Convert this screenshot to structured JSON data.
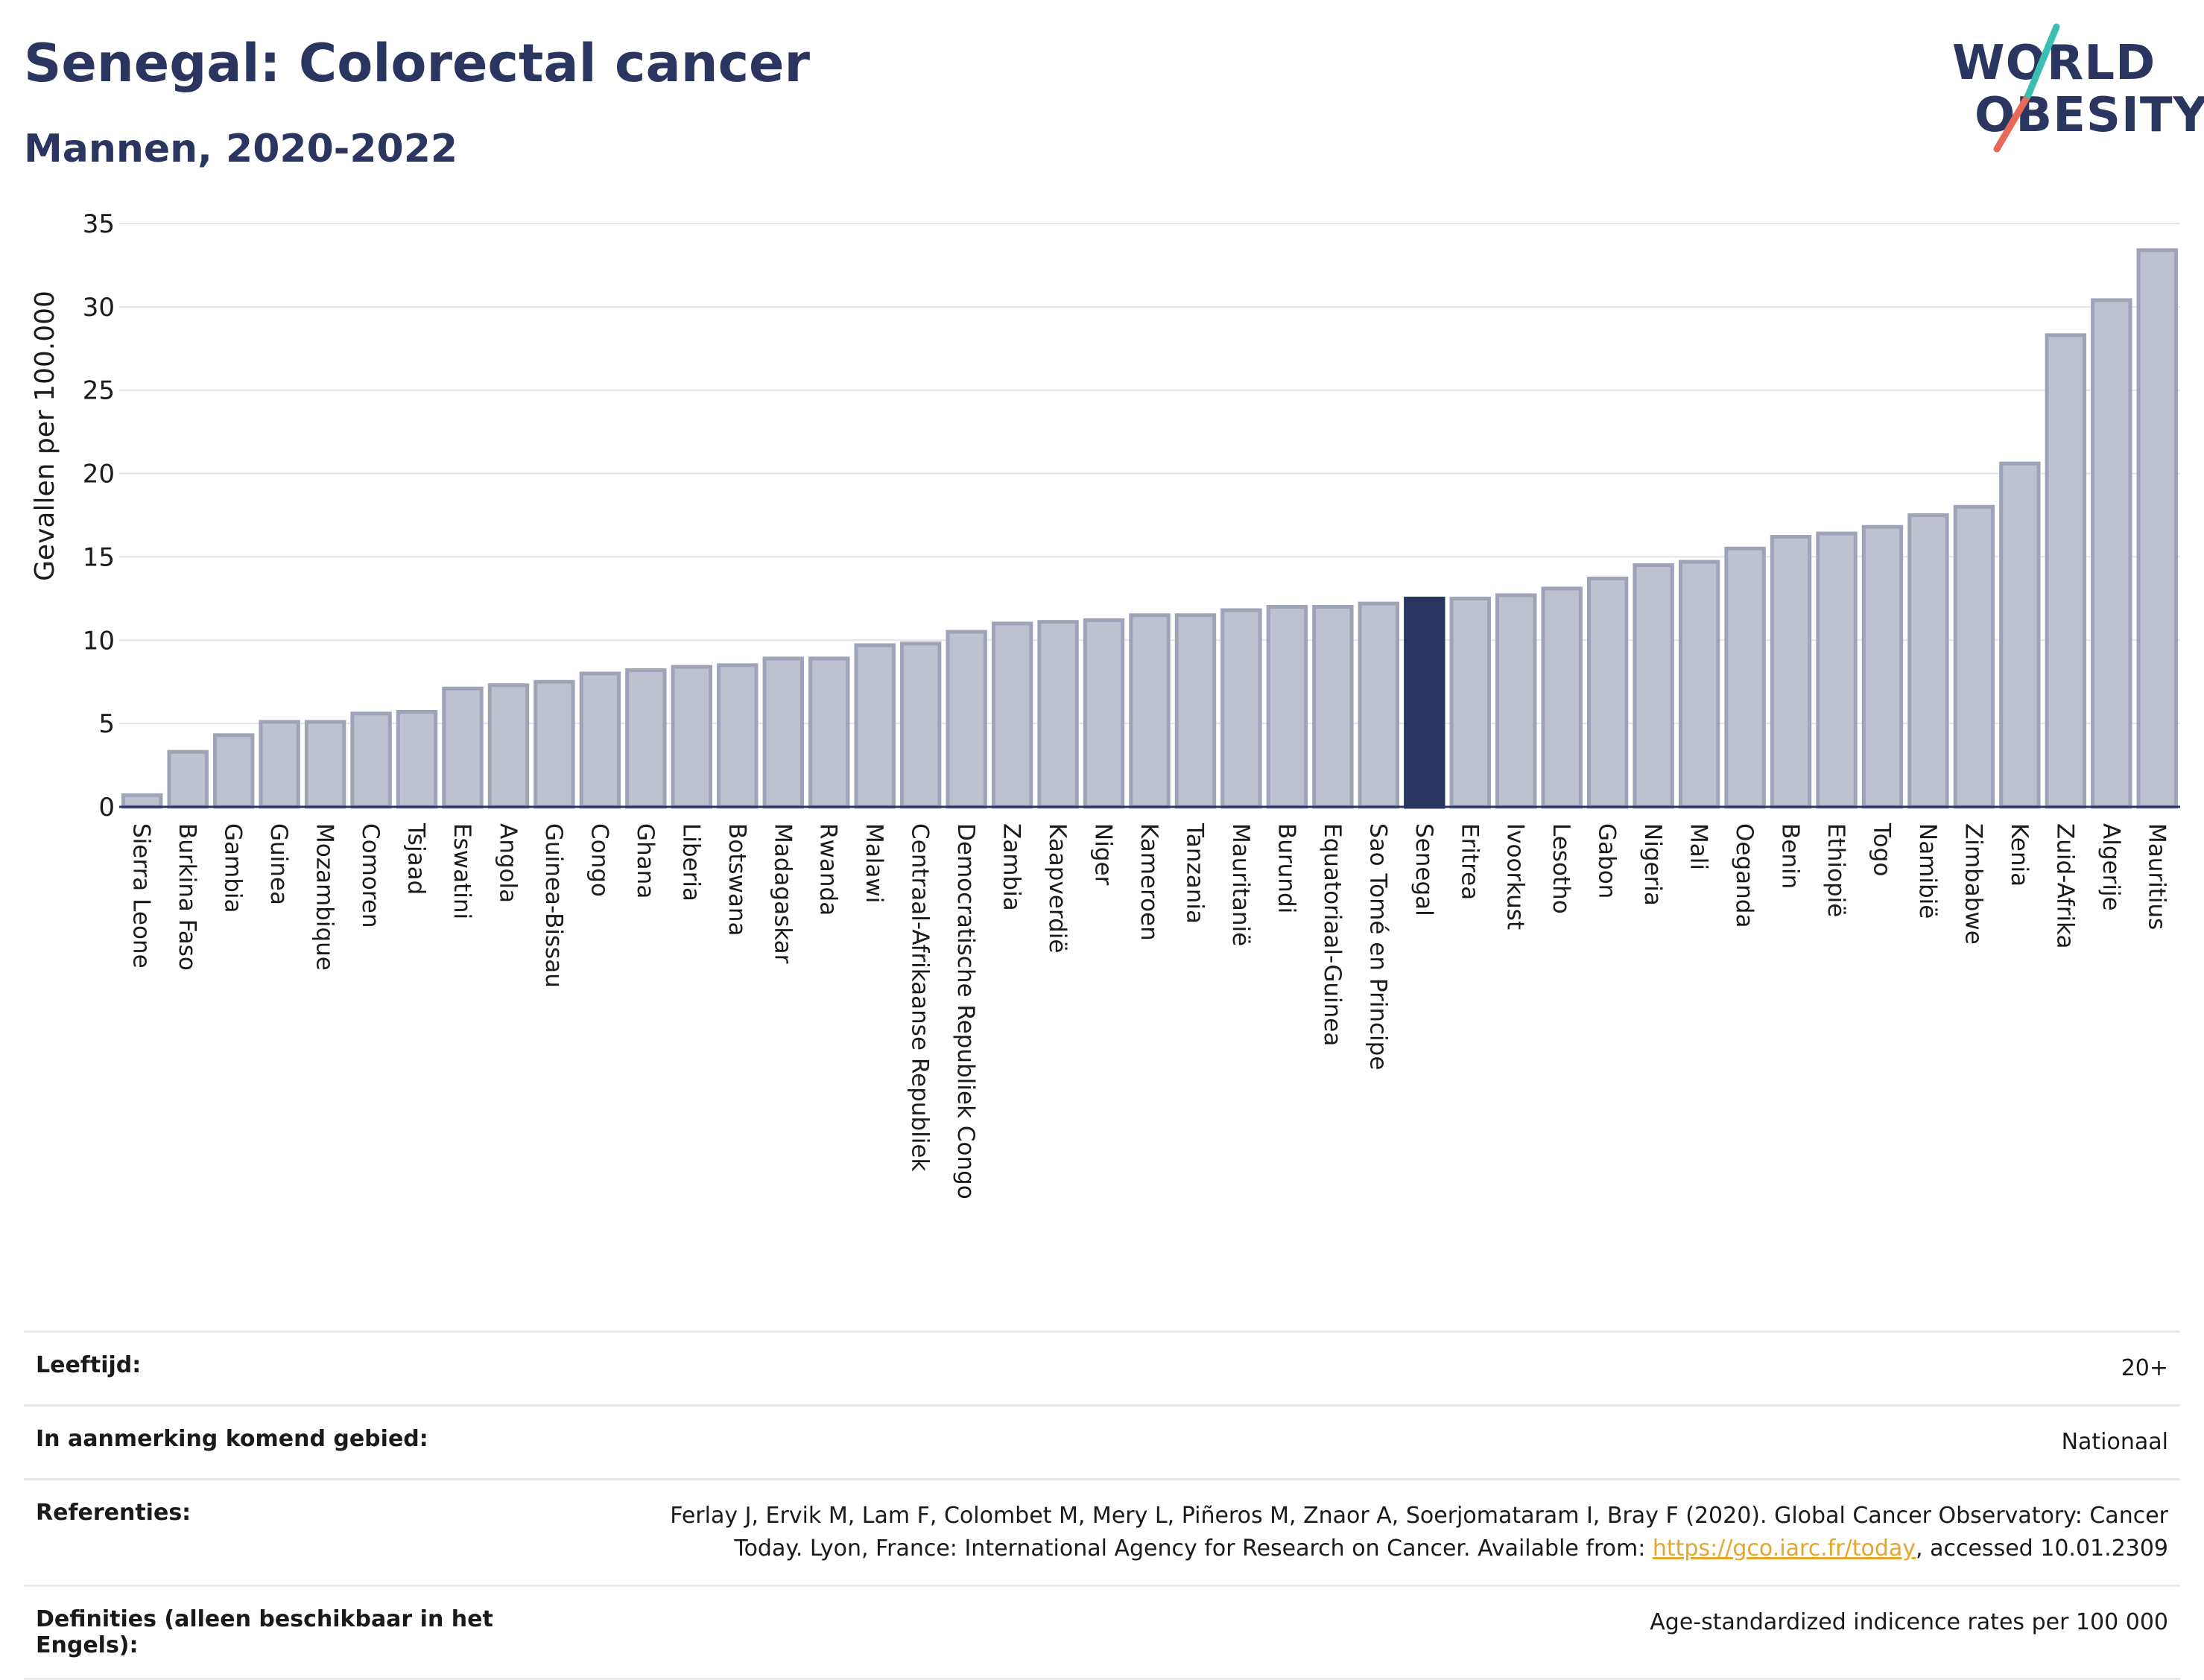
{
  "header": {
    "title": "Senegal: Colorectal cancer",
    "subtitle": "Mannen, 2020-2022"
  },
  "logo": {
    "line1": "WORLD",
    "line2": "OBESITY"
  },
  "chart_data": {
    "type": "bar",
    "ylabel": "Gevallen per 100.000",
    "ylim": [
      0,
      35
    ],
    "yticks": [
      0,
      5,
      10,
      15,
      20,
      25,
      30,
      35
    ],
    "grid": true,
    "highlight": "Senegal",
    "colors": {
      "bar": "#bec1d0",
      "bar_edge": "#9ea3b8",
      "highlight": "#2a3560",
      "grid": "#e3e5ec",
      "axis": "#2a3560"
    },
    "categories": [
      "Sierra Leone",
      "Burkina Faso",
      "Gambia",
      "Guinea",
      "Mozambique",
      "Comoren",
      "Tsjaad",
      "Eswatini",
      "Angola",
      "Guinea-Bissau",
      "Congo",
      "Ghana",
      "Liberia",
      "Botswana",
      "Madagaskar",
      "Rwanda",
      "Malawi",
      "Centraal-Afrikaanse Republiek",
      "Democratische Republiek Congo",
      "Zambia",
      "Kaapverdië",
      "Niger",
      "Kameroen",
      "Tanzania",
      "Mauritanië",
      "Burundi",
      "Equatoriaal-Guinea",
      "Sao Tomé en Principe",
      "Senegal",
      "Eritrea",
      "Ivoorkust",
      "Lesotho",
      "Gabon",
      "Nigeria",
      "Mali",
      "Oeganda",
      "Benin",
      "Ethiopië",
      "Togo",
      "Namibië",
      "Zimbabwe",
      "Kenia",
      "Zuid-Afrika",
      "Algerije",
      "Mauritius"
    ],
    "values": [
      0.7,
      3.3,
      4.3,
      5.1,
      5.1,
      5.6,
      5.7,
      7.1,
      7.3,
      7.5,
      8.0,
      8.2,
      8.4,
      8.5,
      8.9,
      8.9,
      9.7,
      9.8,
      10.5,
      11.0,
      11.1,
      11.2,
      11.5,
      11.5,
      11.8,
      12.0,
      12.0,
      12.2,
      12.5,
      12.5,
      12.7,
      13.1,
      13.7,
      14.5,
      14.7,
      15.5,
      16.2,
      16.4,
      16.8,
      17.5,
      18.0,
      20.6,
      28.3,
      30.4,
      33.4
    ]
  },
  "meta": {
    "age_label": "Leeftijd:",
    "age_value": "20+",
    "area_label": "In aanmerking komend gebied:",
    "area_value": "Nationaal",
    "refs_label": "Referenties:",
    "refs_line1": "Ferlay J, Ervik M, Lam F, Colombet M, Mery L, Piñeros M, Znaor A, Soerjomataram I, Bray F (2020). Global Cancer Observatory: Cancer",
    "refs_line2_pre": "Today. Lyon, France: International Agency for Research on Cancer. Available from: ",
    "refs_link": "https://gco.iarc.fr/today",
    "refs_line2_post": ", accessed 10.01.2309",
    "defs_label": "Definities (alleen beschikbaar in het Engels):",
    "defs_value": "Age-standardized indicence rates per 100 000"
  }
}
